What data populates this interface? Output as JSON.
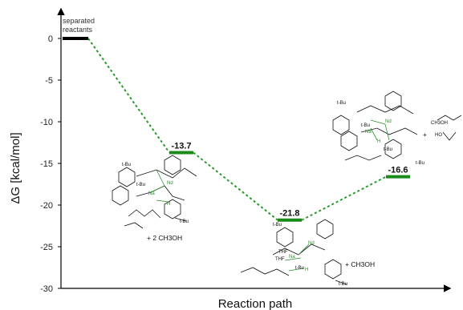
{
  "chart_data": {
    "type": "line",
    "title": "",
    "xlabel": "Reaction path",
    "ylabel": "ΔG [kcal/mol]",
    "ylim": [
      -30,
      0
    ],
    "yticks": [
      0,
      -5,
      -10,
      -15,
      -20,
      -25,
      -30
    ],
    "ytick_labels": [
      "0",
      "-5",
      "-10",
      "-15",
      "-20",
      "-25",
      "-30"
    ],
    "series": [
      {
        "values": [
          0,
          -13.7,
          -21.8,
          -16.6
        ],
        "labels": [
          "",
          "-13.7",
          "-21.8",
          "-16.6"
        ],
        "level_colors": [
          "#000000",
          "#1a8a1a",
          "#1a8a1a",
          "#1a8a1a"
        ]
      }
    ],
    "annotations": {
      "start_label": [
        "separated",
        "reactants"
      ],
      "reagents": [
        "+ 2 CH3OH",
        "+ CH3OH",
        "+"
      ]
    },
    "structure_text": {
      "tbu": "t-Bu",
      "na": "Na",
      "nd": "Nd",
      "o": "O",
      "h": "H",
      "thf": "THF",
      "ch3oh": "CH3OH",
      "ho": "HO"
    },
    "colors": {
      "connector": "#2a9a2a",
      "level": "#1a8a1a",
      "axis": "#000000"
    }
  }
}
